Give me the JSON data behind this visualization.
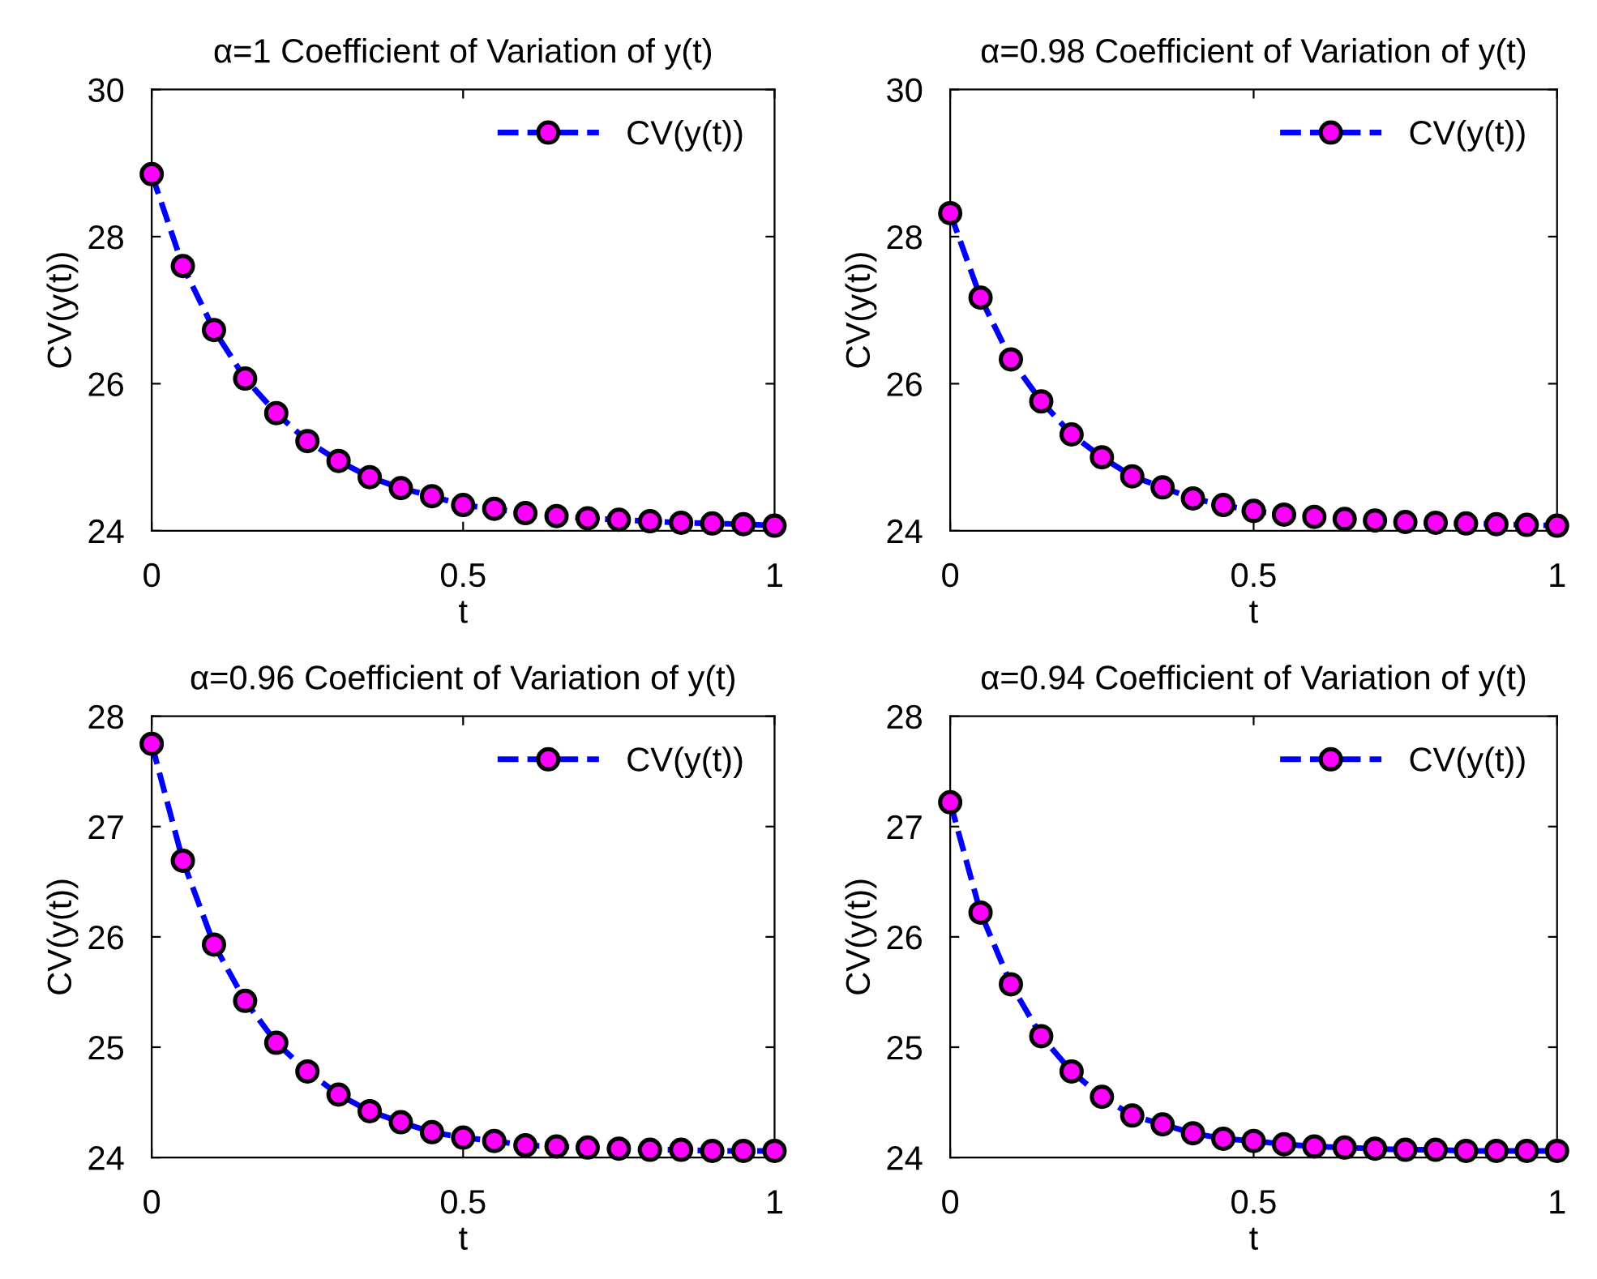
{
  "chart_data": [
    {
      "type": "line",
      "title": "α=1 Coefficient of Variation of y(t)",
      "xlabel": "t",
      "ylabel": "CV(y(t))",
      "xlim": [
        0,
        1
      ],
      "xticks": [
        0,
        0.5,
        1
      ],
      "ylim": [
        24,
        30
      ],
      "yticks": [
        24,
        26,
        28,
        30
      ],
      "grid": false,
      "legend": "top right",
      "marker": "circle",
      "line_style": "dashed",
      "x": [
        0,
        0.05,
        0.1,
        0.15,
        0.2,
        0.25,
        0.3,
        0.35,
        0.4,
        0.45,
        0.5,
        0.55,
        0.6,
        0.65,
        0.7,
        0.75,
        0.8,
        0.85,
        0.9,
        0.95,
        1
      ],
      "series": [
        {
          "name": "CV(y(t))",
          "color": "#0000ff",
          "colors": [
            "#ff00ff",
            "#ff00ff",
            "#ff00ff",
            "#ff00ff",
            "#ff00ff",
            "#ff00ff",
            "#ff00ff",
            "#ff00ff",
            "#ff00ff",
            "#ff00ff",
            "#ff00ff",
            "#ff00ff",
            "#ff00ff",
            "#ff00ff",
            "#ff00ff",
            "#ff00ff",
            "#ff00ff",
            "#ff00ff",
            "#ff00ff",
            "#ff00ff",
            "#ff00ff"
          ],
          "values": [
            28.85,
            27.6,
            26.73,
            26.07,
            25.6,
            25.22,
            24.95,
            24.73,
            24.58,
            24.47,
            24.35,
            24.3,
            24.24,
            24.2,
            24.17,
            24.15,
            24.13,
            24.11,
            24.1,
            24.09,
            24.07
          ]
        }
      ]
    },
    {
      "type": "line",
      "title": "α=0.98 Coefficient of Variation of y(t)",
      "xlabel": "t",
      "ylabel": "CV(y(t))",
      "xlim": [
        0,
        1
      ],
      "xticks": [
        0,
        0.5,
        1
      ],
      "ylim": [
        24,
        30
      ],
      "yticks": [
        24,
        26,
        28,
        30
      ],
      "grid": false,
      "legend": "top right",
      "marker": "circle",
      "line_style": "dashed",
      "x": [
        0,
        0.05,
        0.1,
        0.15,
        0.2,
        0.25,
        0.3,
        0.35,
        0.4,
        0.45,
        0.5,
        0.55,
        0.6,
        0.65,
        0.7,
        0.75,
        0.8,
        0.85,
        0.9,
        0.95,
        1
      ],
      "series": [
        {
          "name": "CV(y(t))",
          "color": "#0000ff",
          "colors": [
            "#ff00ff",
            "#ff00ff",
            "#ff00ff",
            "#ff00ff",
            "#ff00ff",
            "#ff00ff",
            "#ff00ff",
            "#ff00ff",
            "#ff00ff",
            "#ff00ff",
            "#ff00ff",
            "#ff00ff",
            "#ff00ff",
            "#ff00ff",
            "#ff00ff",
            "#ff00ff",
            "#ff00ff",
            "#ff00ff",
            "#ff00ff",
            "#ff00ff",
            "#ff00ff"
          ],
          "values": [
            28.32,
            27.17,
            26.33,
            25.76,
            25.31,
            25.0,
            24.74,
            24.59,
            24.44,
            24.35,
            24.27,
            24.22,
            24.19,
            24.16,
            24.14,
            24.12,
            24.11,
            24.1,
            24.09,
            24.08,
            24.07
          ]
        }
      ]
    },
    {
      "type": "line",
      "title": "α=0.96 Coefficient of Variation of y(t)",
      "xlabel": "t",
      "ylabel": "CV(y(t))",
      "xlim": [
        0,
        1
      ],
      "xticks": [
        0,
        0.5,
        1
      ],
      "ylim": [
        24,
        28
      ],
      "yticks": [
        24,
        25,
        26,
        27,
        28
      ],
      "grid": false,
      "legend": "top right",
      "marker": "circle",
      "line_style": "dashed",
      "x": [
        0,
        0.05,
        0.1,
        0.15,
        0.2,
        0.25,
        0.3,
        0.35,
        0.4,
        0.45,
        0.5,
        0.55,
        0.6,
        0.65,
        0.7,
        0.75,
        0.8,
        0.85,
        0.9,
        0.95,
        1
      ],
      "series": [
        {
          "name": "CV(y(t))",
          "color": "#0000ff",
          "colors": [
            "#ff00ff",
            "#ff00ff",
            "#ff00ff",
            "#ff00ff",
            "#ff00ff",
            "#ff00ff",
            "#ff00ff",
            "#ff00ff",
            "#ff00ff",
            "#ff00ff",
            "#ff00ff",
            "#ff00ff",
            "#ff00ff",
            "#ff00ff",
            "#ff00ff",
            "#ff00ff",
            "#ff00ff",
            "#ff00ff",
            "#ff00ff",
            "#ff00ff",
            "#ff00ff"
          ],
          "values": [
            27.75,
            26.69,
            25.93,
            25.42,
            25.04,
            24.78,
            24.57,
            24.42,
            24.32,
            24.23,
            24.18,
            24.15,
            24.11,
            24.1,
            24.09,
            24.08,
            24.07,
            24.07,
            24.06,
            24.06,
            24.06
          ]
        }
      ]
    },
    {
      "type": "line",
      "title": "α=0.94 Coefficient of Variation of y(t)",
      "xlabel": "t",
      "ylabel": "CV(y(t))",
      "xlim": [
        0,
        1
      ],
      "xticks": [
        0,
        0.5,
        1
      ],
      "ylim": [
        24,
        28
      ],
      "yticks": [
        24,
        25,
        26,
        27,
        28
      ],
      "grid": false,
      "legend": "top right",
      "marker": "circle",
      "line_style": "dashed",
      "x": [
        0,
        0.05,
        0.1,
        0.15,
        0.2,
        0.25,
        0.3,
        0.35,
        0.4,
        0.45,
        0.5,
        0.55,
        0.6,
        0.65,
        0.7,
        0.75,
        0.8,
        0.85,
        0.9,
        0.95,
        1
      ],
      "series": [
        {
          "name": "CV(y(t))",
          "color": "#0000ff",
          "colors": [
            "#ff00ff",
            "#ff00ff",
            "#ff00ff",
            "#ff00ff",
            "#ff00ff",
            "#ff00ff",
            "#ff00ff",
            "#ff00ff",
            "#ff00ff",
            "#ff00ff",
            "#ff00ff",
            "#ff00ff",
            "#ff00ff",
            "#ff00ff",
            "#ff00ff",
            "#ff00ff",
            "#ff00ff",
            "#ff00ff",
            "#ff00ff",
            "#ff00ff",
            "#ff00ff"
          ],
          "values": [
            27.22,
            26.22,
            25.57,
            25.1,
            24.78,
            24.55,
            24.38,
            24.3,
            24.22,
            24.17,
            24.15,
            24.12,
            24.1,
            24.09,
            24.08,
            24.07,
            24.07,
            24.06,
            24.06,
            24.06,
            24.06
          ]
        }
      ]
    }
  ]
}
